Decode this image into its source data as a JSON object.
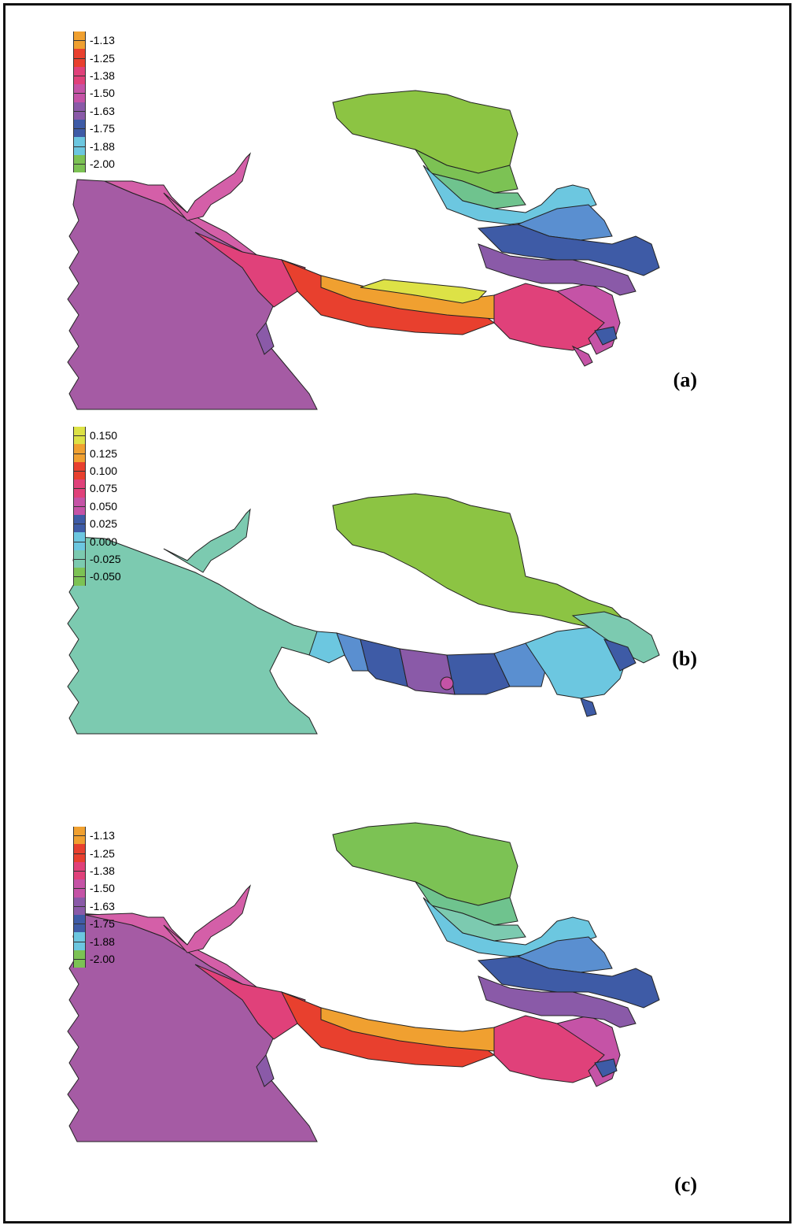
{
  "panels": [
    {
      "label": "(a)",
      "legend": [
        {
          "value": "-1.13",
          "color": "#f0a030"
        },
        {
          "value": "-1.25",
          "color": "#e8402e"
        },
        {
          "value": "-1.38",
          "color": "#e0417a"
        },
        {
          "value": "-1.50",
          "color": "#c553a6"
        },
        {
          "value": "-1.63",
          "color": "#8a5aa8"
        },
        {
          "value": "-1.75",
          "color": "#3e5ba6"
        },
        {
          "value": "-1.88",
          "color": "#5a8fd0"
        },
        {
          "value": "-2.00",
          "color": "#6cc7e0"
        }
      ],
      "extra_swatches": [
        "#6fc38e",
        "#7cc254",
        "#8cc443"
      ]
    },
    {
      "label": "(b)",
      "legend": [
        {
          "value": "0.150",
          "color": "#dde246"
        },
        {
          "value": "0.125",
          "color": "#f0a030"
        },
        {
          "value": "0.100",
          "color": "#e8402e"
        },
        {
          "value": "0.075",
          "color": "#e0417a"
        },
        {
          "value": "0.050",
          "color": "#c553a6"
        },
        {
          "value": "0.025",
          "color": "#8a5aa8"
        },
        {
          "value": "0.000",
          "color": "#3e5ba6"
        },
        {
          "value": "-0.025",
          "color": "#6cc7e0"
        },
        {
          "value": "-0.050",
          "color": "#7ccab0"
        }
      ],
      "extra_swatches": [
        "#7cc254"
      ]
    },
    {
      "label": "(c)",
      "legend": [
        {
          "value": "-1.13",
          "color": "#f0a030"
        },
        {
          "value": "-1.25",
          "color": "#e8402e"
        },
        {
          "value": "-1.38",
          "color": "#e0417a"
        },
        {
          "value": "-1.50",
          "color": "#c553a6"
        },
        {
          "value": "-1.63",
          "color": "#8a5aa8"
        },
        {
          "value": "-1.75",
          "color": "#3e5ba6"
        },
        {
          "value": "-1.88",
          "color": "#5a8fd0"
        },
        {
          "value": "-2.00",
          "color": "#6cc7e0"
        }
      ],
      "extra_swatches": [
        "#6fc38e",
        "#7cc254",
        "#8cc443"
      ]
    }
  ]
}
